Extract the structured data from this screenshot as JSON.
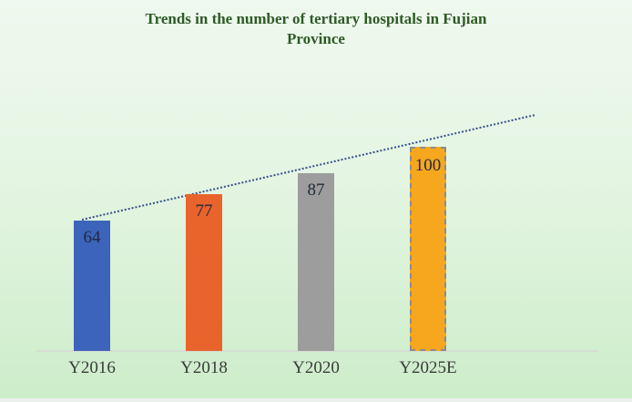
{
  "title": {
    "line1": "Trends in the number of tertiary hospitals in Fujian",
    "line2": "Province",
    "color": "#2E5A26"
  },
  "colors": {
    "background_top": "#EFF9EF",
    "background_bottom": "#CDEDCA",
    "trendline": "#35508C",
    "baseline": "#D6DCD4",
    "value_label": "#20293E",
    "axis_label": "#3B3B3B"
  },
  "chart_data": {
    "type": "bar",
    "title": "Trends in the number of tertiary hospitals in Fujian Province",
    "categories": [
      "Y2016",
      "Y2018",
      "Y2020",
      "Y2025E"
    ],
    "values": [
      64,
      77,
      87,
      100
    ],
    "bar_colors": [
      "#3C64BA",
      "#E8642C",
      "#9D9D9D",
      "#F7A71E"
    ],
    "value_labels": [
      "64",
      "77",
      "87",
      "100"
    ],
    "last_bar_outline": "dashed (estimate bar)",
    "trendline": {
      "style": "dotted",
      "color": "#35508C",
      "direction": "rising"
    },
    "xlabel": "",
    "ylabel": "",
    "ylim": [
      0,
      110
    ],
    "grid": false,
    "legend": "none"
  }
}
